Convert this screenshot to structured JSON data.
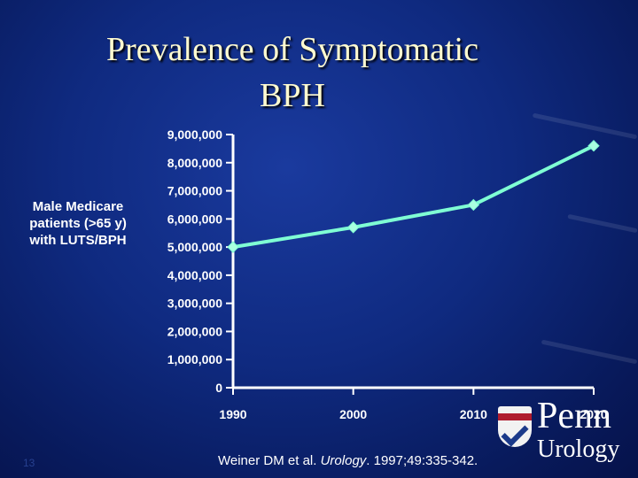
{
  "slide": {
    "title_lines": [
      "Prevalence of Symptomatic",
      "BPH"
    ],
    "ylabel_lines": [
      "Male Medicare",
      "patients (>65 y)",
      "with LUTS/BPH"
    ],
    "citation_prefix": "Weiner DM et al. ",
    "citation_journal": "Urology",
    "citation_suffix": ". 1997;49:335-342.",
    "logo_text": "Penn",
    "logo_subtext": "Urology",
    "slide_number": "13"
  },
  "colors": {
    "background": "#0f2a80",
    "title": "#fffbd0",
    "series_line": "#7fffd4",
    "series_marker": "#aaffe0",
    "axis": "#ffffff"
  },
  "chart_data": {
    "type": "line",
    "title": "Prevalence of Symptomatic BPH",
    "xlabel": "",
    "ylabel": "Male Medicare patients (>65 y) with LUTS/BPH",
    "categories": [
      "1990",
      "2000",
      "2010",
      "2020"
    ],
    "y_ticks": [
      "0",
      "1,000,000",
      "2,000,000",
      "3,000,000",
      "4,000,000",
      "5,000,000",
      "6,000,000",
      "7,000,000",
      "8,000,000",
      "9,000,000"
    ],
    "ylim": [
      0,
      9000000
    ],
    "series": [
      {
        "values": [
          5000000,
          5700000,
          6500000,
          8600000
        ]
      }
    ],
    "grid": false,
    "legend": "none"
  }
}
